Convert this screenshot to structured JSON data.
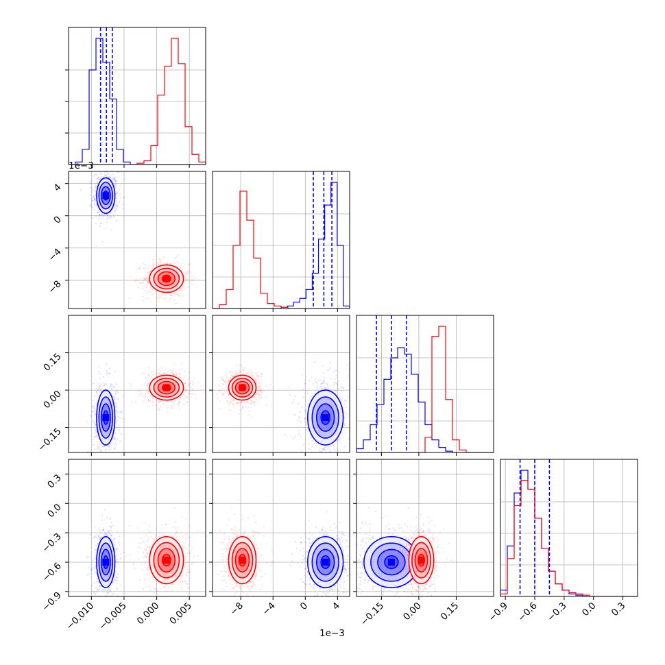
{
  "chart_data": {
    "type": "corner",
    "variables": [
      {
        "range": [
          -0.0135,
          0.0075
        ],
        "ticks": [
          -0.01,
          -0.005,
          0.0,
          0.005
        ],
        "tick_labels": [
          "−0.010",
          "−0.005",
          "0.000",
          "0.005"
        ],
        "offset_label": ""
      },
      {
        "range": [
          -11.5,
          5.5
        ],
        "ticks": [
          -8,
          -4,
          0,
          4
        ],
        "tick_labels": [
          "−8",
          "−4",
          "0",
          "4"
        ],
        "offset_label": "1e−3"
      },
      {
        "range": [
          -0.25,
          0.3
        ],
        "ticks": [
          -0.15,
          0.0,
          0.15
        ],
        "tick_labels": [
          "−0.15",
          "0.00",
          "0.15"
        ],
        "offset_label": ""
      },
      {
        "range": [
          -0.95,
          0.45
        ],
        "ticks": [
          -0.9,
          -0.6,
          -0.3,
          0.0,
          0.3
        ],
        "tick_labels": [
          "−0.9",
          "−0.6",
          "−0.3",
          "0.0",
          "0.3"
        ],
        "offset_label": ""
      }
    ],
    "series": [
      {
        "color": "#0000ff",
        "means": [
          -0.0078,
          2.5,
          -0.11,
          -0.6
        ],
        "sigmas": [
          0.0007,
          1.1,
          0.055,
          0.13
        ],
        "quantiles": [
          [
            -0.0086,
            -0.0077,
            -0.0068
          ],
          [
            1.0,
            2.3,
            3.3
          ],
          [
            -0.17,
            -0.11,
            -0.05
          ],
          [
            -0.75,
            -0.6,
            -0.45
          ]
        ],
        "histograms": [
          [
            0,
            0.02,
            0.12,
            0.75,
            1.0,
            0.81,
            0.52,
            0.12,
            0.02,
            0,
            0,
            0,
            0,
            0,
            0,
            0,
            0,
            0,
            0,
            0
          ],
          [
            0,
            0,
            0,
            0,
            0,
            0,
            0,
            0,
            0,
            0,
            0,
            0.01,
            0.02,
            0.05,
            0.08,
            0.15,
            0.28,
            0.55,
            0.82,
            1.0,
            0.5,
            0.02
          ],
          [
            0.03,
            0.1,
            0.22,
            0.38,
            0.58,
            0.75,
            0.83,
            0.78,
            0.62,
            0.4,
            0.22,
            0.1,
            0.04,
            0.01,
            0,
            0,
            0,
            0,
            0,
            0
          ],
          [
            0.05,
            0.4,
            0.82,
            1.0,
            0.85,
            0.62,
            0.38,
            0.2,
            0.1,
            0.05,
            0.02,
            0.01,
            0,
            0,
            0,
            0,
            0,
            0,
            0,
            0
          ]
        ]
      },
      {
        "color": "#ff0000",
        "means": [
          0.0015,
          -7.8,
          0.01,
          -0.58
        ],
        "sigmas": [
          0.0013,
          0.85,
          0.025,
          0.12
        ],
        "quantiles": [],
        "histograms": [
          [
            0,
            0,
            0,
            0,
            0,
            0,
            0,
            0,
            0,
            0,
            0.01,
            0.03,
            0.15,
            0.55,
            0.78,
            1.0,
            0.8,
            0.3,
            0.08,
            0.02
          ],
          [
            0,
            0.03,
            0.15,
            0.5,
            0.93,
            0.7,
            0.4,
            0.12,
            0.04,
            0.02,
            0.01,
            0,
            0,
            0,
            0,
            0,
            0,
            0,
            0,
            0
          ],
          [
            0,
            0,
            0,
            0,
            0,
            0,
            0,
            0,
            0,
            0,
            0.12,
            0.92,
            1.0,
            0.42,
            0.1,
            0.02,
            0,
            0,
            0,
            0
          ],
          [
            0.02,
            0.3,
            0.72,
            0.92,
            0.85,
            0.62,
            0.38,
            0.2,
            0.1,
            0.05,
            0.03,
            0.02,
            0.01,
            0,
            0,
            0,
            0,
            0,
            0,
            0
          ]
        ]
      }
    ],
    "contour_levels_sigma": [
      0.5,
      1.0,
      1.5,
      2.0
    ],
    "grid": true
  }
}
